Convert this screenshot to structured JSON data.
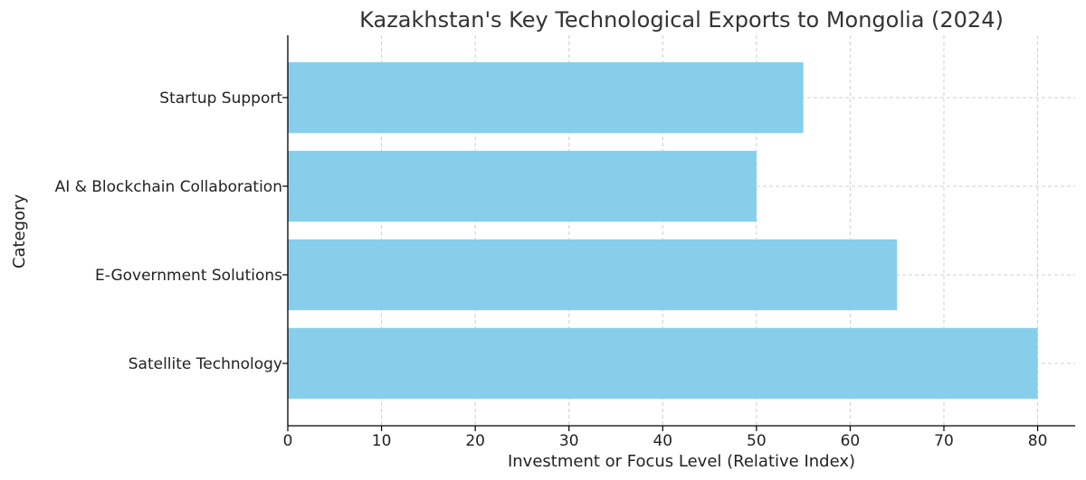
{
  "chart_data": {
    "type": "bar",
    "orientation": "horizontal",
    "title": "Kazakhstan's Key Technological Exports to Mongolia (2024)",
    "xlabel": "Investment or Focus Level (Relative Index)",
    "ylabel": "Category",
    "categories": [
      "Satellite Technology",
      "E-Government Solutions",
      "AI & Blockchain Collaboration",
      "Startup Support"
    ],
    "values": [
      80,
      65,
      50,
      55
    ],
    "xlim": [
      0,
      84
    ],
    "xticks": [
      0,
      10,
      20,
      30,
      40,
      50,
      60,
      70,
      80
    ],
    "bar_color": "#87ceeb",
    "grid": true
  }
}
